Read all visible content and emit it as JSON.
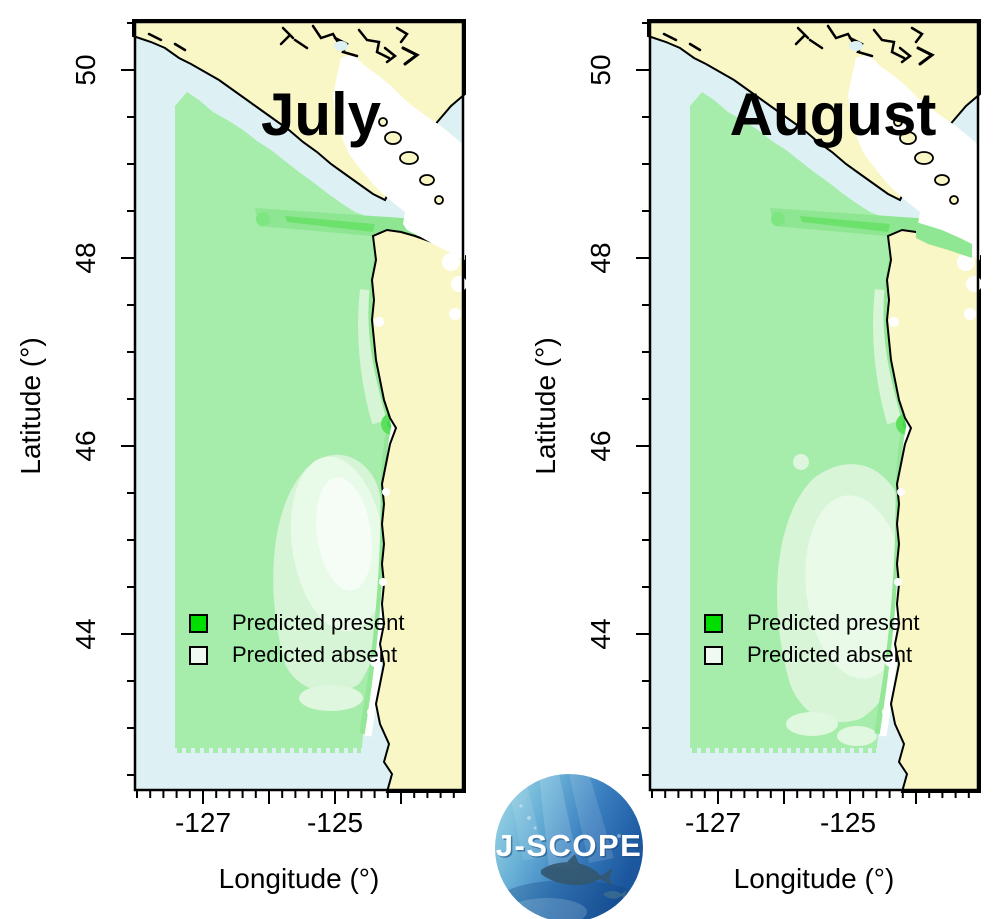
{
  "panels": [
    {
      "title": "July",
      "x_axis": {
        "label": "Longitude (°)",
        "tick_labels": [
          "-127",
          "-125"
        ]
      },
      "y_axis": {
        "label": "Latitude (°)",
        "tick_labels": [
          "50",
          "48",
          "46",
          "44"
        ]
      },
      "legend": [
        {
          "label": "Predicted present",
          "color": "#00dd00"
        },
        {
          "label": "Predicted absent",
          "color": "#f0faf0"
        }
      ]
    },
    {
      "title": "August",
      "x_axis": {
        "label": "Longitude (°)",
        "tick_labels": [
          "-127",
          "-125"
        ]
      },
      "y_axis": {
        "label": "Latitude (°)",
        "tick_labels": [
          "50",
          "48",
          "46",
          "44"
        ]
      },
      "legend": [
        {
          "label": "Predicted present",
          "color": "#00dd00"
        },
        {
          "label": "Predicted absent",
          "color": "#f0faf0"
        }
      ]
    }
  ],
  "logo": {
    "label": "J-SCOPE"
  },
  "colors": {
    "ocean": "#ddf1f5",
    "land": "#faf7c6",
    "prediction_field_green": "#a6ecaa",
    "legend_present": "#00dd00",
    "legend_absent": "#f0faf0",
    "coast_outline": "#000000"
  }
}
